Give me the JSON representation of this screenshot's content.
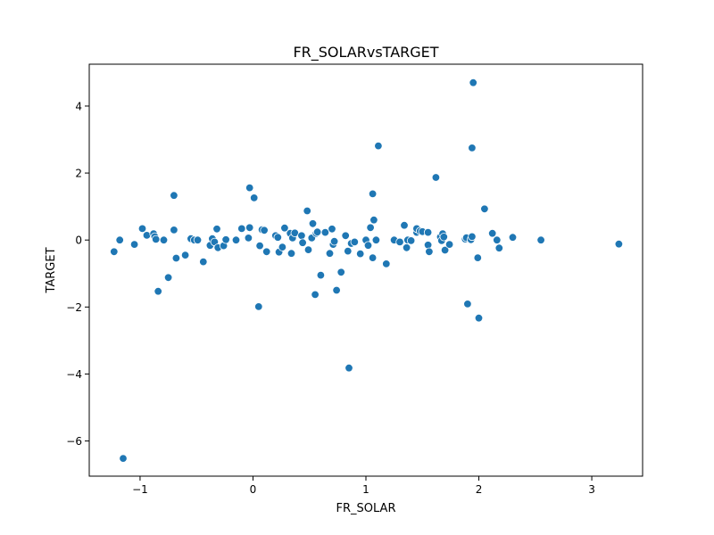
{
  "chart_data": {
    "type": "scatter",
    "title": "FR_SOLARvsTARGET",
    "xlabel": "FR_SOLAR",
    "ylabel": "TARGET",
    "xlim": [
      -1.45,
      3.45
    ],
    "ylim": [
      -7.05,
      5.25
    ],
    "xticks": [
      -1,
      0,
      1,
      2,
      3
    ],
    "xtick_labels": [
      "−1",
      "0",
      "1",
      "2",
      "3"
    ],
    "yticks": [
      -6,
      -4,
      -2,
      0,
      2,
      4
    ],
    "ytick_labels": [
      "−6",
      "−4",
      "−2",
      "0",
      "2",
      "4"
    ],
    "grid": false,
    "marker_color": "#1f77b4",
    "points": [
      [
        -1.23,
        -0.35
      ],
      [
        -1.18,
        0.0
      ],
      [
        -1.15,
        -6.52
      ],
      [
        -1.05,
        -0.13
      ],
      [
        -0.98,
        0.34
      ],
      [
        -0.94,
        0.14
      ],
      [
        -0.88,
        0.19
      ],
      [
        -0.87,
        0.1
      ],
      [
        -0.86,
        0.02
      ],
      [
        -0.84,
        -1.53
      ],
      [
        -0.79,
        0.0
      ],
      [
        -0.75,
        -1.12
      ],
      [
        -0.7,
        1.33
      ],
      [
        -0.7,
        0.3
      ],
      [
        -0.68,
        -0.54
      ],
      [
        -0.6,
        -0.45
      ],
      [
        -0.55,
        0.04
      ],
      [
        -0.52,
        0.0
      ],
      [
        -0.49,
        0.0
      ],
      [
        -0.44,
        -0.65
      ],
      [
        -0.38,
        -0.16
      ],
      [
        -0.36,
        0.04
      ],
      [
        -0.34,
        -0.06
      ],
      [
        -0.32,
        0.33
      ],
      [
        -0.31,
        -0.23
      ],
      [
        -0.26,
        -0.17
      ],
      [
        -0.24,
        0.01
      ],
      [
        -0.15,
        0.0
      ],
      [
        -0.1,
        0.34
      ],
      [
        -0.04,
        0.06
      ],
      [
        -0.03,
        1.56
      ],
      [
        -0.03,
        0.37
      ],
      [
        0.01,
        1.26
      ],
      [
        0.05,
        -1.99
      ],
      [
        0.06,
        -0.17
      ],
      [
        0.08,
        0.31
      ],
      [
        0.1,
        0.29
      ],
      [
        0.12,
        -0.35
      ],
      [
        0.2,
        0.13
      ],
      [
        0.22,
        0.08
      ],
      [
        0.23,
        -0.36
      ],
      [
        0.26,
        -0.21
      ],
      [
        0.28,
        0.36
      ],
      [
        0.33,
        0.2
      ],
      [
        0.34,
        -0.4
      ],
      [
        0.35,
        0.06
      ],
      [
        0.37,
        0.21
      ],
      [
        0.43,
        0.13
      ],
      [
        0.44,
        -0.08
      ],
      [
        0.48,
        0.87
      ],
      [
        0.49,
        -0.29
      ],
      [
        0.52,
        0.06
      ],
      [
        0.53,
        0.49
      ],
      [
        0.55,
        -1.63
      ],
      [
        0.56,
        0.2
      ],
      [
        0.57,
        0.24
      ],
      [
        0.6,
        -1.05
      ],
      [
        0.64,
        0.23
      ],
      [
        0.68,
        -0.4
      ],
      [
        0.7,
        0.33
      ],
      [
        0.71,
        -0.13
      ],
      [
        0.72,
        -0.04
      ],
      [
        0.74,
        -1.5
      ],
      [
        0.78,
        -0.96
      ],
      [
        0.82,
        0.13
      ],
      [
        0.84,
        -0.33
      ],
      [
        0.85,
        -3.82
      ],
      [
        0.87,
        -0.1
      ],
      [
        0.9,
        -0.06
      ],
      [
        0.95,
        -0.41
      ],
      [
        1.0,
        0.0
      ],
      [
        1.02,
        -0.16
      ],
      [
        1.04,
        0.37
      ],
      [
        1.06,
        1.38
      ],
      [
        1.06,
        -0.53
      ],
      [
        1.07,
        0.6
      ],
      [
        1.09,
        0.0
      ],
      [
        1.11,
        2.81
      ],
      [
        1.18,
        -0.71
      ],
      [
        1.25,
        0.0
      ],
      [
        1.3,
        -0.06
      ],
      [
        1.34,
        0.44
      ],
      [
        1.36,
        -0.23
      ],
      [
        1.37,
        0.0
      ],
      [
        1.4,
        -0.02
      ],
      [
        1.45,
        0.23
      ],
      [
        1.45,
        0.34
      ],
      [
        1.48,
        0.27
      ],
      [
        1.5,
        0.25
      ],
      [
        1.55,
        0.23
      ],
      [
        1.55,
        -0.15
      ],
      [
        1.56,
        -0.35
      ],
      [
        1.62,
        1.87
      ],
      [
        1.66,
        0.09
      ],
      [
        1.67,
        -0.02
      ],
      [
        1.68,
        0.19
      ],
      [
        1.69,
        0.09
      ],
      [
        1.7,
        -0.3
      ],
      [
        1.74,
        -0.13
      ],
      [
        1.88,
        0.03
      ],
      [
        1.89,
        0.07
      ],
      [
        1.9,
        -1.91
      ],
      [
        1.93,
        0.01
      ],
      [
        1.94,
        0.1
      ],
      [
        1.94,
        2.75
      ],
      [
        1.95,
        4.7
      ],
      [
        1.99,
        -0.53
      ],
      [
        2.0,
        -2.33
      ],
      [
        2.05,
        0.93
      ],
      [
        2.12,
        0.2
      ],
      [
        2.16,
        0.0
      ],
      [
        2.18,
        -0.24
      ],
      [
        2.3,
        0.08
      ],
      [
        2.55,
        0.0
      ],
      [
        3.24,
        -0.12
      ]
    ]
  }
}
